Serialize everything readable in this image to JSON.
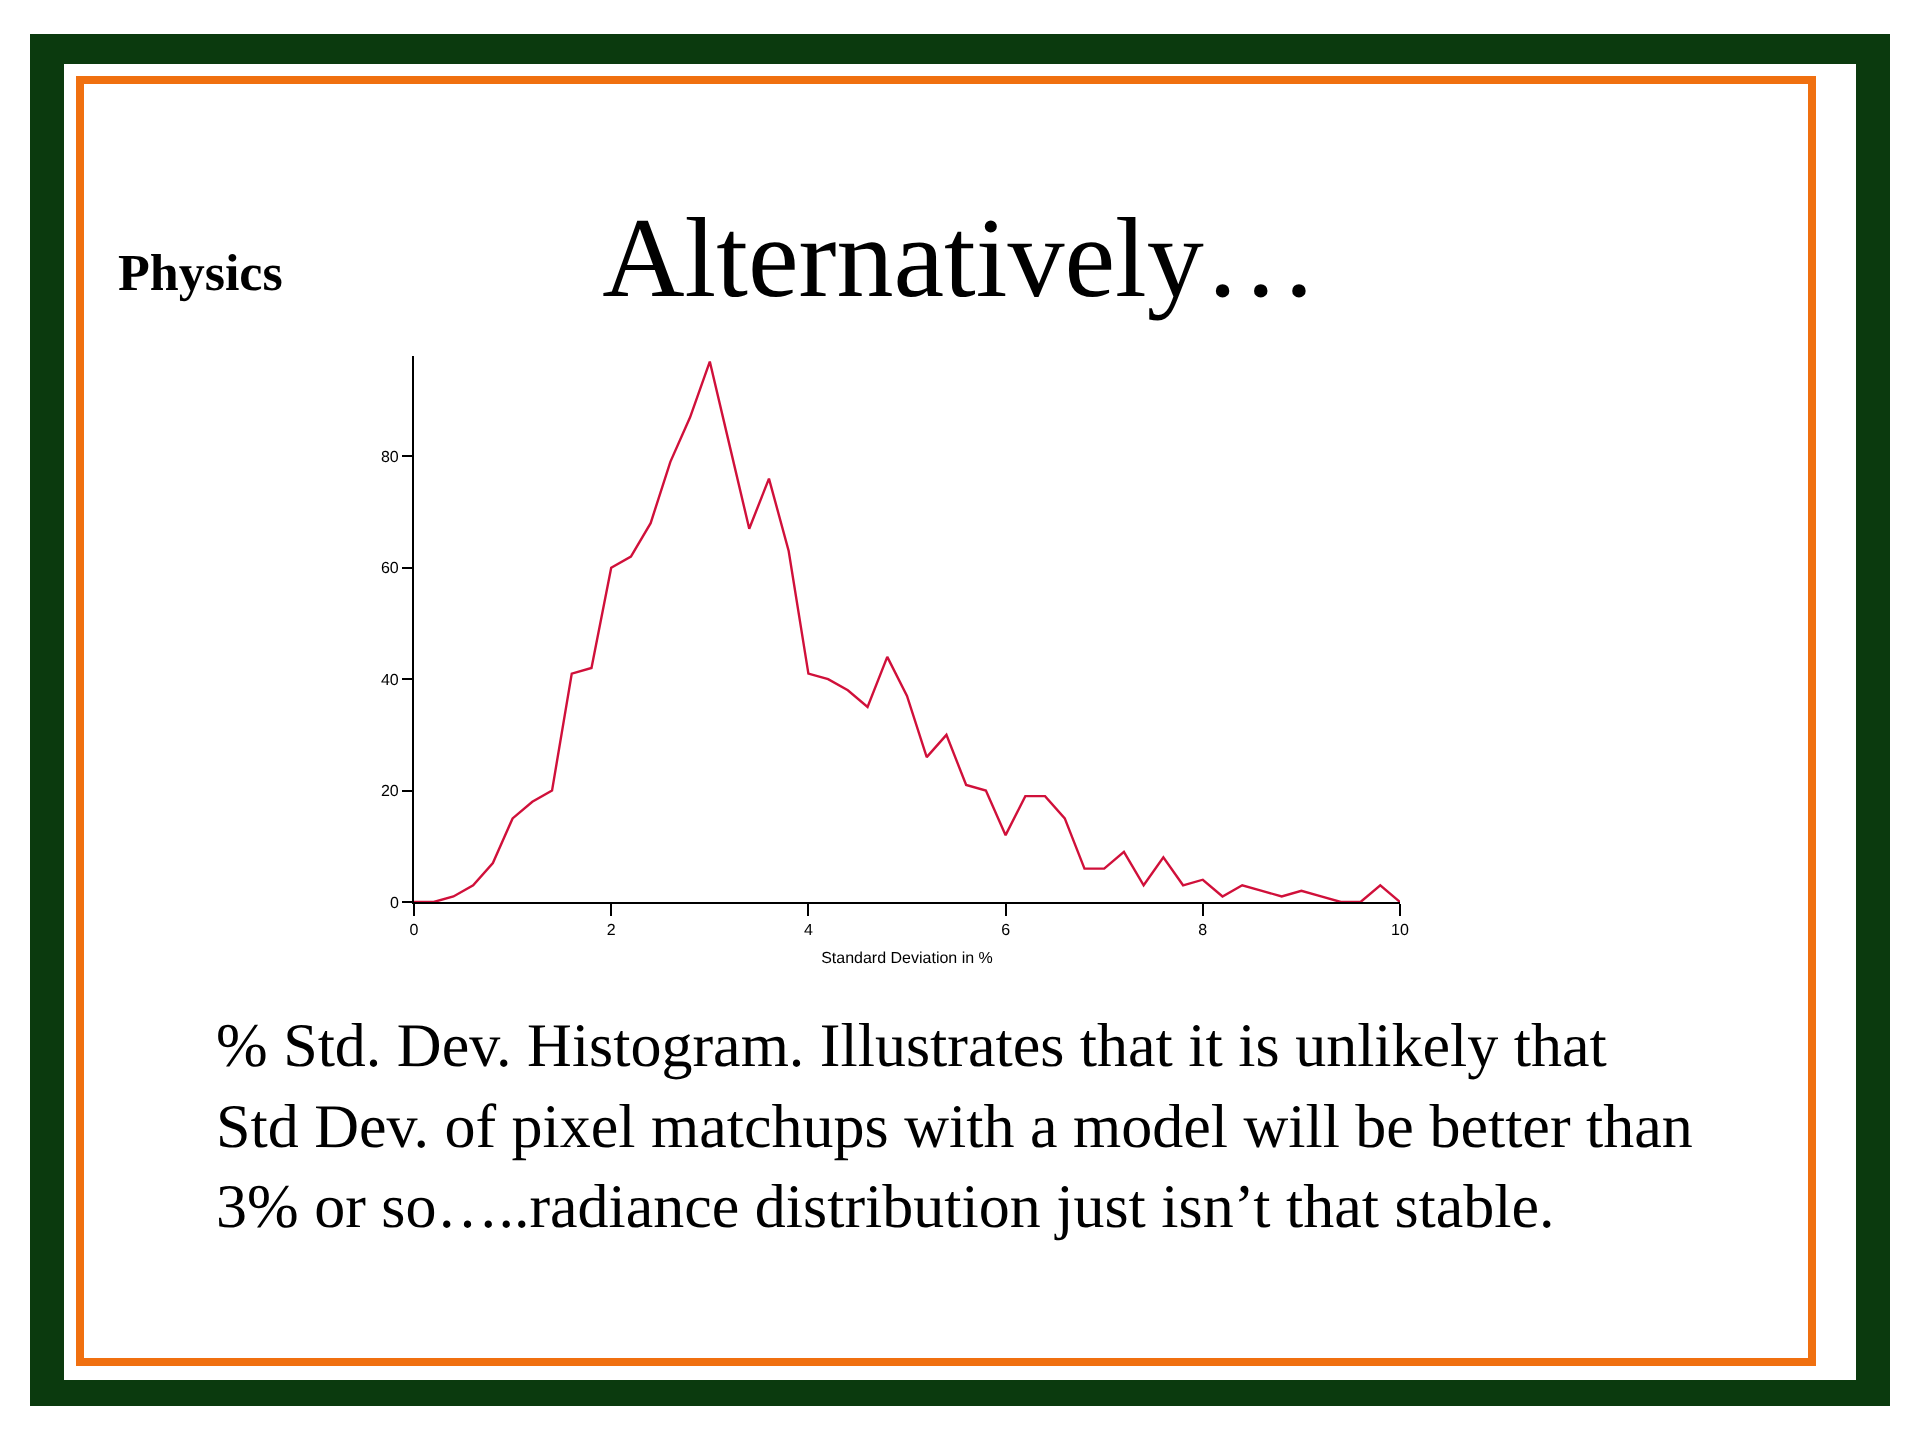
{
  "chart_data": {
    "type": "line",
    "title": "Alternatively…",
    "xlabel": "Standard Deviation in %",
    "annotations": [
      "Physics",
      "% Std. Dev. Histogram. Illustrates that it is unlikely that\nStd Dev. of pixel matchups with a model will be better than\n3% or so…..radiance distribution just isn’t that stable."
    ],
    "x": [
      0,
      0.2,
      0.4,
      0.6,
      0.8,
      1.0,
      1.2,
      1.4,
      1.6,
      1.8,
      2.0,
      2.2,
      2.4,
      2.6,
      2.8,
      3.0,
      3.2,
      3.4,
      3.6,
      3.8,
      4.0,
      4.2,
      4.4,
      4.6,
      4.8,
      5.0,
      5.2,
      5.4,
      5.6,
      5.8,
      6.0,
      6.2,
      6.4,
      6.6,
      6.8,
      7.0,
      7.2,
      7.4,
      7.6,
      7.8,
      8.0,
      8.2,
      8.4,
      8.6,
      8.8,
      9.0,
      9.2,
      9.4,
      9.6,
      9.8,
      10.0
    ],
    "series": [
      {
        "color": "#d0103a",
        "values": [
          0,
          0,
          1,
          3,
          7,
          15,
          18,
          20,
          41,
          42,
          60,
          62,
          68,
          79,
          87,
          97,
          82,
          67,
          76,
          63,
          41,
          40,
          38,
          35,
          44,
          37,
          26,
          30,
          21,
          20,
          12,
          19,
          19,
          15,
          6,
          6,
          9,
          3,
          8,
          3,
          4,
          1,
          3,
          2,
          1,
          2,
          1,
          0,
          0,
          3,
          0
        ]
      }
    ],
    "xlim": [
      0,
      10
    ],
    "xticks": [
      0,
      2,
      4,
      6,
      8,
      10
    ],
    "ylim": [
      0,
      98
    ],
    "yticks": [
      0,
      20,
      40,
      60,
      80
    ],
    "line_style": "solid"
  }
}
